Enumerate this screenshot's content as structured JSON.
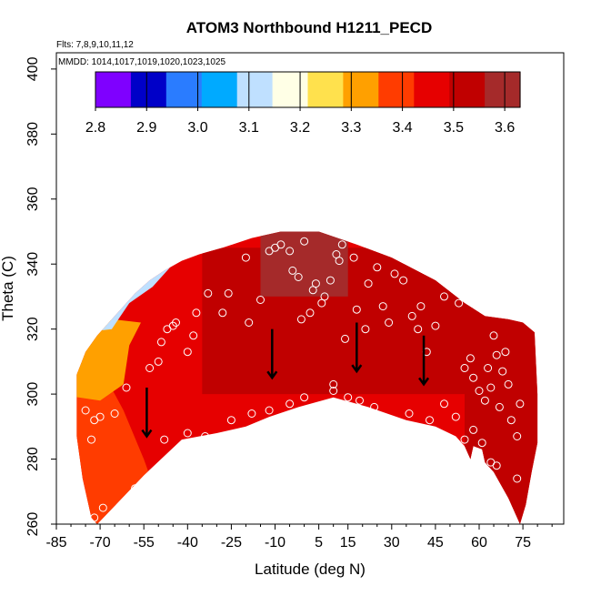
{
  "chart_data": {
    "type": "heatmap",
    "title": "ATOM3 Northbound H1211_PECD",
    "flights_note": "Flts: 7,8,9,10,11,12",
    "dates_note": "MMDD: 1014,1017,1019,1020,1023,1025",
    "xlabel": "Latitude (deg N)",
    "ylabel": "Theta (C)",
    "xlim": [
      -85,
      89
    ],
    "ylim": [
      260,
      405
    ],
    "x_ticks": [
      -85,
      -70,
      -55,
      -40,
      -25,
      -10,
      5,
      15,
      30,
      45,
      60,
      75
    ],
    "y_ticks": [
      260,
      280,
      300,
      320,
      340,
      360,
      380,
      400
    ],
    "colorbar": {
      "ticks": [
        2.8,
        2.9,
        3.0,
        3.1,
        3.2,
        3.3,
        3.4,
        3.5,
        3.6
      ],
      "range": [
        2.8,
        3.63
      ],
      "colors": [
        "#7f00ff",
        "#0000c8",
        "#2a7cff",
        "#00aaff",
        "#bfe0ff",
        "#ffffe6",
        "#ffe14d",
        "#ffa000",
        "#ff3c00",
        "#e60000",
        "#c00000",
        "#a52a2a"
      ]
    },
    "field_regions": [
      {
        "name": "southern-low",
        "value": 3.38
      },
      {
        "name": "southern-mid",
        "value": 3.32
      },
      {
        "name": "southern-high-vortex",
        "value": 3.1
      },
      {
        "name": "midlat-south",
        "value": 3.45
      },
      {
        "name": "tropics",
        "value": 3.52
      },
      {
        "name": "northern-mid",
        "value": 3.55
      },
      {
        "name": "northern-high",
        "value": 3.5
      },
      {
        "name": "upper-tropics",
        "value": 3.58
      }
    ],
    "observations": [
      {
        "x": -72,
        "y": 262
      },
      {
        "x": -69,
        "y": 265
      },
      {
        "x": -58,
        "y": 271
      },
      {
        "x": -73,
        "y": 286
      },
      {
        "x": -75,
        "y": 295
      },
      {
        "x": -72,
        "y": 292
      },
      {
        "x": -70,
        "y": 293
      },
      {
        "x": -65,
        "y": 294
      },
      {
        "x": -61,
        "y": 302
      },
      {
        "x": -53,
        "y": 308
      },
      {
        "x": -50,
        "y": 310
      },
      {
        "x": -49,
        "y": 316
      },
      {
        "x": -47,
        "y": 320
      },
      {
        "x": -45,
        "y": 321
      },
      {
        "x": -44,
        "y": 322
      },
      {
        "x": -40,
        "y": 313
      },
      {
        "x": -38,
        "y": 318
      },
      {
        "x": -37,
        "y": 325
      },
      {
        "x": -33,
        "y": 331
      },
      {
        "x": -34,
        "y": 287
      },
      {
        "x": -40,
        "y": 288
      },
      {
        "x": -28,
        "y": 325
      },
      {
        "x": -26,
        "y": 331
      },
      {
        "x": -20,
        "y": 342
      },
      {
        "x": -19,
        "y": 322
      },
      {
        "x": -15,
        "y": 329
      },
      {
        "x": -12,
        "y": 344
      },
      {
        "x": -10,
        "y": 345
      },
      {
        "x": -8,
        "y": 346
      },
      {
        "x": -5,
        "y": 344
      },
      {
        "x": -4,
        "y": 338
      },
      {
        "x": -2,
        "y": 336
      },
      {
        "x": -1,
        "y": 323
      },
      {
        "x": 2,
        "y": 325
      },
      {
        "x": 0,
        "y": 347
      },
      {
        "x": 3,
        "y": 332
      },
      {
        "x": 4,
        "y": 334
      },
      {
        "x": 6,
        "y": 328
      },
      {
        "x": 7,
        "y": 330
      },
      {
        "x": 9,
        "y": 335
      },
      {
        "x": 11,
        "y": 343
      },
      {
        "x": 12,
        "y": 341
      },
      {
        "x": 13,
        "y": 346
      },
      {
        "x": 14,
        "y": 317
      },
      {
        "x": 17,
        "y": 342
      },
      {
        "x": 18,
        "y": 326
      },
      {
        "x": 21,
        "y": 320
      },
      {
        "x": 22,
        "y": 334
      },
      {
        "x": 25,
        "y": 339
      },
      {
        "x": 27,
        "y": 327
      },
      {
        "x": 29,
        "y": 322
      },
      {
        "x": 31,
        "y": 337
      },
      {
        "x": 34,
        "y": 335
      },
      {
        "x": 37,
        "y": 324
      },
      {
        "x": 39,
        "y": 320
      },
      {
        "x": 40,
        "y": 327
      },
      {
        "x": 42,
        "y": 313
      },
      {
        "x": 45,
        "y": 321
      },
      {
        "x": 48,
        "y": 330
      },
      {
        "x": 51,
        "y": 333
      },
      {
        "x": 53,
        "y": 328
      },
      {
        "x": 55,
        "y": 308
      },
      {
        "x": 57,
        "y": 311
      },
      {
        "x": 58,
        "y": 305
      },
      {
        "x": 60,
        "y": 301
      },
      {
        "x": 62,
        "y": 298
      },
      {
        "x": 63,
        "y": 308
      },
      {
        "x": 64,
        "y": 302
      },
      {
        "x": 65,
        "y": 318
      },
      {
        "x": 66,
        "y": 312
      },
      {
        "x": 67,
        "y": 296
      },
      {
        "x": 68,
        "y": 307
      },
      {
        "x": 69,
        "y": 313
      },
      {
        "x": 70,
        "y": 303
      },
      {
        "x": 71,
        "y": 292
      },
      {
        "x": 73,
        "y": 287
      },
      {
        "x": 74,
        "y": 297
      },
      {
        "x": 48,
        "y": 297
      },
      {
        "x": 52,
        "y": 293
      },
      {
        "x": 55,
        "y": 286
      },
      {
        "x": 58,
        "y": 289
      },
      {
        "x": 61,
        "y": 285
      },
      {
        "x": 64,
        "y": 279
      },
      {
        "x": 66,
        "y": 278
      },
      {
        "x": 73,
        "y": 274
      },
      {
        "x": 10,
        "y": 301
      },
      {
        "x": 10,
        "y": 303
      },
      {
        "x": 15,
        "y": 299
      },
      {
        "x": 19,
        "y": 298
      },
      {
        "x": 24,
        "y": 296
      },
      {
        "x": 36,
        "y": 294
      },
      {
        "x": 43,
        "y": 292
      },
      {
        "x": 0,
        "y": 299
      },
      {
        "x": -5,
        "y": 297
      },
      {
        "x": -12,
        "y": 295
      },
      {
        "x": -18,
        "y": 294
      },
      {
        "x": -25,
        "y": 292
      },
      {
        "x": -48,
        "y": 286
      }
    ],
    "arrows": [
      {
        "x": -54,
        "y_start": 302,
        "y_end": 287
      },
      {
        "x": -11,
        "y_start": 320,
        "y_end": 305
      },
      {
        "x": 18,
        "y_start": 322,
        "y_end": 307
      },
      {
        "x": 41,
        "y_start": 318,
        "y_end": 303
      }
    ]
  }
}
